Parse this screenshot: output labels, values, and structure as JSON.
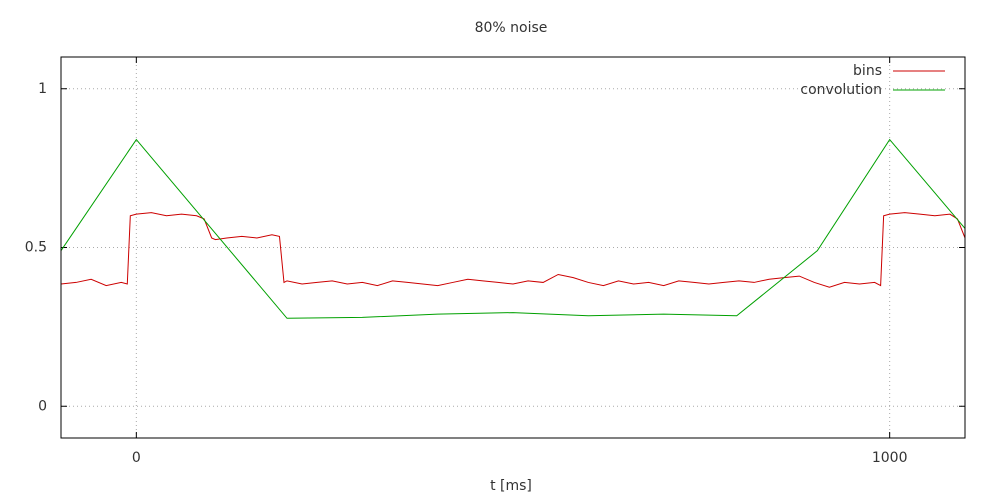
{
  "chart_data": {
    "type": "line",
    "title": "80% noise",
    "x_label": "t [ms]",
    "xlim": [
      -100,
      1100
    ],
    "ylim": [
      -0.1,
      1.1
    ],
    "xticks": [
      0,
      1000
    ],
    "yticks": [
      0,
      0.5,
      1
    ],
    "grid": true,
    "legend": "top-right",
    "series": [
      {
        "name": "bins",
        "color": "#cc0000",
        "x": [
          -100,
          -80,
          -60,
          -40,
          -20,
          -12,
          -8,
          0,
          20,
          40,
          60,
          80,
          90,
          100,
          105,
          120,
          140,
          160,
          180,
          190,
          196,
          200,
          220,
          240,
          260,
          280,
          300,
          320,
          340,
          360,
          380,
          400,
          420,
          440,
          460,
          480,
          500,
          520,
          540,
          560,
          580,
          600,
          620,
          640,
          660,
          680,
          700,
          720,
          740,
          760,
          780,
          800,
          820,
          840,
          860,
          880,
          900,
          920,
          940,
          960,
          980,
          988,
          992,
          1000,
          1020,
          1040,
          1060,
          1080,
          1090,
          1100
        ],
        "values": [
          0.385,
          0.39,
          0.4,
          0.38,
          0.39,
          0.385,
          0.6,
          0.605,
          0.61,
          0.6,
          0.605,
          0.6,
          0.59,
          0.53,
          0.525,
          0.53,
          0.535,
          0.53,
          0.54,
          0.535,
          0.39,
          0.395,
          0.385,
          0.39,
          0.395,
          0.385,
          0.39,
          0.38,
          0.395,
          0.39,
          0.385,
          0.38,
          0.39,
          0.4,
          0.395,
          0.39,
          0.385,
          0.395,
          0.39,
          0.415,
          0.405,
          0.39,
          0.38,
          0.395,
          0.385,
          0.39,
          0.38,
          0.395,
          0.39,
          0.385,
          0.39,
          0.395,
          0.39,
          0.4,
          0.405,
          0.41,
          0.39,
          0.375,
          0.39,
          0.385,
          0.39,
          0.38,
          0.6,
          0.605,
          0.61,
          0.605,
          0.6,
          0.605,
          0.59,
          0.53
        ]
      },
      {
        "name": "convolution",
        "color": "#00a000",
        "x": [
          -100,
          0,
          200,
          300,
          400,
          500,
          600,
          700,
          797,
          904,
          1000,
          1100
        ],
        "values": [
          0.49,
          0.84,
          0.277,
          0.28,
          0.29,
          0.295,
          0.285,
          0.29,
          0.285,
          0.49,
          0.84,
          0.56
        ]
      }
    ]
  }
}
